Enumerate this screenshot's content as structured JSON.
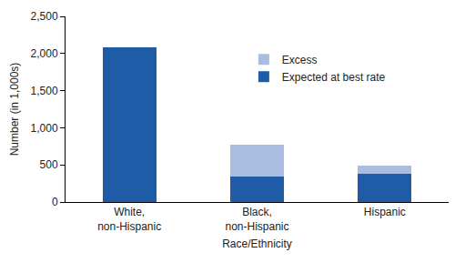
{
  "chart_data": {
    "type": "bar",
    "categories": [
      "White, non-Hispanic",
      "Black, non-Hispanic",
      "Hispanic"
    ],
    "series": [
      {
        "name": "Expected at best rate",
        "color": "#1f5ca8",
        "values": [
          2080,
          340,
          380
        ]
      },
      {
        "name": "Excess",
        "color": "#a8bde0",
        "values": [
          0,
          430,
          110
        ]
      }
    ],
    "stacked": true,
    "x_label": "Race/Ethnicity",
    "y_label": "Number (in 1,000s)",
    "ylim": [
      0,
      2500
    ],
    "yticks": [
      0,
      500,
      {
        "value": 1000,
        "label": "1,000"
      },
      {
        "value": 1500,
        "label": "1,500"
      },
      {
        "value": 2000,
        "label": "2,000"
      },
      {
        "value": 2500,
        "label": "2,500"
      }
    ],
    "grid": false,
    "legend": "upper center"
  }
}
